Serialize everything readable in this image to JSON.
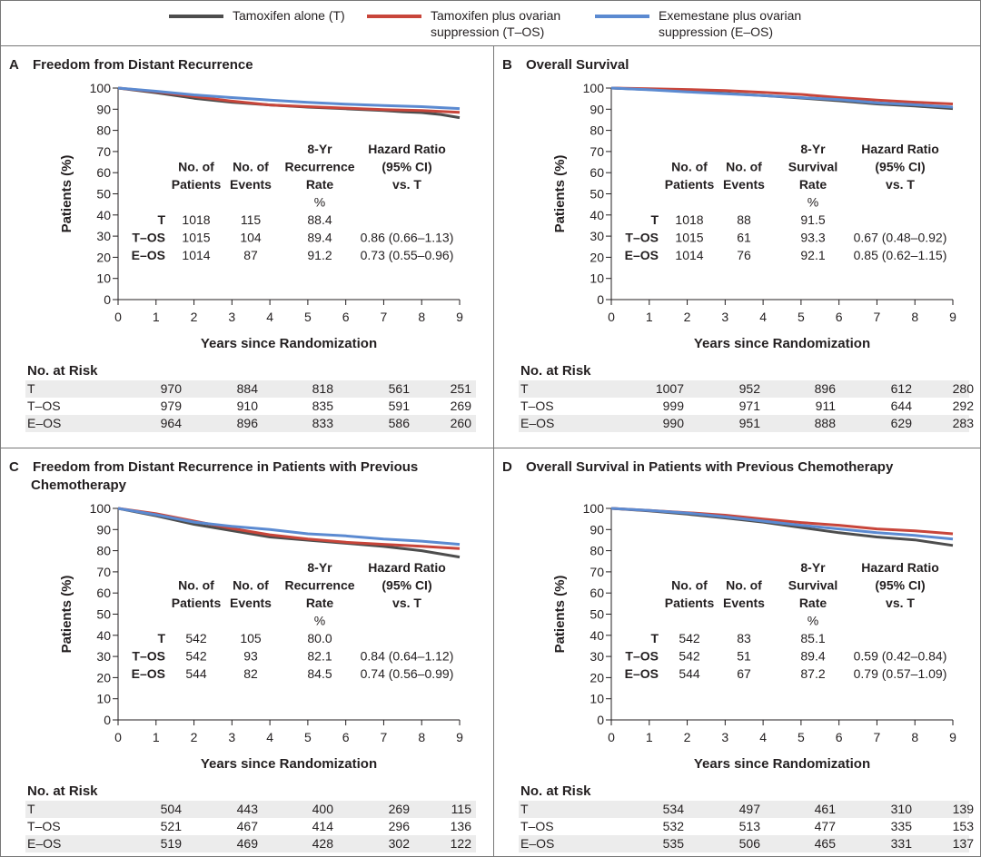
{
  "legend": [
    {
      "label": "Tamoxifen alone (T)",
      "color": "#4d4d4d"
    },
    {
      "label": "Tamoxifen plus ovarian\nsuppression (T–OS)",
      "color": "#c8453a"
    },
    {
      "label": "Exemestane plus ovarian\nsuppression (E–OS)",
      "color": "#5b8ad1"
    }
  ],
  "risk_title": "No. at Risk",
  "risk_labels": [
    "T",
    "T–OS",
    "E–OS"
  ],
  "chart_data": [
    {
      "type": "line",
      "letter": "A",
      "title": "Freedom from Distant Recurrence",
      "title_line2": "",
      "xlabel": "Years since Randomization",
      "ylabel": "Patients (%)",
      "xlim": [
        0,
        9
      ],
      "ylim": [
        0,
        100
      ],
      "xticks": [
        0,
        1,
        2,
        3,
        4,
        5,
        6,
        7,
        8,
        9
      ],
      "yticks": [
        0,
        10,
        20,
        30,
        40,
        50,
        60,
        70,
        80,
        90,
        100
      ],
      "series": [
        {
          "name": "T",
          "color": "#4d4d4d",
          "x": [
            0,
            1,
            2,
            3,
            4,
            5,
            6,
            7,
            7.5,
            8,
            8.5,
            9
          ],
          "y": [
            100,
            97.8,
            95.2,
            93.3,
            92.0,
            91.0,
            90.2,
            89.4,
            88.8,
            88.4,
            87.5,
            86.0
          ]
        },
        {
          "name": "T–OS",
          "color": "#c8453a",
          "x": [
            0,
            1,
            2,
            3,
            4,
            5,
            6,
            7,
            8,
            9
          ],
          "y": [
            100,
            98.3,
            96.0,
            93.8,
            92.0,
            91.2,
            90.5,
            89.8,
            89.4,
            88.5
          ]
        },
        {
          "name": "E–OS",
          "color": "#5b8ad1",
          "x": [
            0,
            1,
            2,
            3,
            4,
            5,
            6,
            7,
            8,
            9
          ],
          "y": [
            100,
            98.5,
            96.8,
            95.5,
            94.3,
            93.2,
            92.4,
            91.7,
            91.2,
            90.3
          ]
        }
      ],
      "table": {
        "headers": [
          [
            "No. of",
            "Patients"
          ],
          [
            "No. of",
            "Events"
          ],
          [
            "8-Yr",
            "Recurrence",
            "Rate",
            "%"
          ],
          [
            "Hazard Ratio",
            "(95% CI)",
            "vs. T"
          ]
        ],
        "rows": [
          {
            "group": "T",
            "patients": "1018",
            "events": "115",
            "rate": "88.4",
            "hr": ""
          },
          {
            "group": "T–OS",
            "patients": "1015",
            "events": "104",
            "rate": "89.4",
            "hr": "0.86 (0.66–1.13)"
          },
          {
            "group": "E–OS",
            "patients": "1014",
            "events": "87",
            "rate": "91.2",
            "hr": "0.73 (0.55–0.96)"
          }
        ]
      },
      "risk": [
        [
          "970",
          "884",
          "818",
          "561",
          "251"
        ],
        [
          "979",
          "910",
          "835",
          "591",
          "269"
        ],
        [
          "964",
          "896",
          "833",
          "586",
          "260"
        ]
      ]
    },
    {
      "type": "line",
      "letter": "B",
      "title": "Overall Survival",
      "title_line2": "",
      "xlabel": "Years since Randomization",
      "ylabel": "Patients (%)",
      "xlim": [
        0,
        9
      ],
      "ylim": [
        0,
        100
      ],
      "xticks": [
        0,
        1,
        2,
        3,
        4,
        5,
        6,
        7,
        8,
        9
      ],
      "yticks": [
        0,
        10,
        20,
        30,
        40,
        50,
        60,
        70,
        80,
        90,
        100
      ],
      "series": [
        {
          "name": "T",
          "color": "#4d4d4d",
          "x": [
            0,
            1,
            2,
            3,
            4,
            5,
            6,
            7,
            8,
            9
          ],
          "y": [
            100,
            99.3,
            98.5,
            97.5,
            96.5,
            95.3,
            94.0,
            92.5,
            91.5,
            90.3
          ]
        },
        {
          "name": "T–OS",
          "color": "#c8453a",
          "x": [
            0,
            1,
            2,
            3,
            4,
            5,
            6,
            7,
            8,
            9
          ],
          "y": [
            100,
            99.7,
            99.3,
            98.8,
            98.0,
            97.0,
            95.5,
            94.3,
            93.3,
            92.5
          ]
        },
        {
          "name": "E–OS",
          "color": "#5b8ad1",
          "x": [
            0,
            1,
            2,
            3,
            4,
            5,
            6,
            7,
            8,
            9
          ],
          "y": [
            100,
            99.2,
            98.2,
            97.3,
            96.5,
            95.5,
            94.5,
            93.0,
            92.1,
            91.0
          ]
        }
      ],
      "table": {
        "headers": [
          [
            "No. of",
            "Patients"
          ],
          [
            "No. of",
            "Events"
          ],
          [
            "8-Yr",
            "Survival",
            "Rate",
            "%"
          ],
          [
            "Hazard Ratio",
            "(95% CI)",
            "vs. T"
          ]
        ],
        "rows": [
          {
            "group": "T",
            "patients": "1018",
            "events": "88",
            "rate": "91.5",
            "hr": ""
          },
          {
            "group": "T–OS",
            "patients": "1015",
            "events": "61",
            "rate": "93.3",
            "hr": "0.67 (0.48–0.92)"
          },
          {
            "group": "E–OS",
            "patients": "1014",
            "events": "76",
            "rate": "92.1",
            "hr": "0.85 (0.62–1.15)"
          }
        ]
      },
      "risk": [
        [
          "1007",
          "952",
          "896",
          "612",
          "280"
        ],
        [
          "999",
          "971",
          "911",
          "644",
          "292"
        ],
        [
          "990",
          "951",
          "888",
          "629",
          "283"
        ]
      ]
    },
    {
      "type": "line",
      "letter": "C",
      "title": "Freedom from Distant Recurrence in Patients with Previous",
      "title_line2": "Chemotherapy",
      "xlabel": "Years since Randomization",
      "ylabel": "Patients (%)",
      "xlim": [
        0,
        9
      ],
      "ylim": [
        0,
        100
      ],
      "xticks": [
        0,
        1,
        2,
        3,
        4,
        5,
        6,
        7,
        8,
        9
      ],
      "yticks": [
        0,
        10,
        20,
        30,
        40,
        50,
        60,
        70,
        80,
        90,
        100
      ],
      "series": [
        {
          "name": "T",
          "color": "#4d4d4d",
          "x": [
            0,
            1,
            2,
            3,
            4,
            5,
            6,
            7,
            8,
            8.5,
            9
          ],
          "y": [
            100,
            96.5,
            92.5,
            89.5,
            86.5,
            85.0,
            83.5,
            82.0,
            80.0,
            78.5,
            77.0
          ]
        },
        {
          "name": "T–OS",
          "color": "#c8453a",
          "x": [
            0,
            1,
            2,
            3,
            4,
            5,
            6,
            7,
            8,
            9
          ],
          "y": [
            100,
            97.5,
            94.0,
            90.5,
            87.5,
            85.5,
            84.0,
            83.0,
            82.1,
            81.0
          ]
        },
        {
          "name": "E–OS",
          "color": "#5b8ad1",
          "x": [
            0,
            1,
            2,
            3,
            4,
            5,
            6,
            7,
            8,
            9
          ],
          "y": [
            100,
            97.0,
            93.5,
            91.5,
            90.0,
            88.0,
            87.0,
            85.5,
            84.5,
            83.0
          ]
        }
      ],
      "table": {
        "headers": [
          [
            "No. of",
            "Patients"
          ],
          [
            "No. of",
            "Events"
          ],
          [
            "8-Yr",
            "Recurrence",
            "Rate",
            "%"
          ],
          [
            "Hazard Ratio",
            "(95% CI)",
            "vs. T"
          ]
        ],
        "rows": [
          {
            "group": "T",
            "patients": "542",
            "events": "105",
            "rate": "80.0",
            "hr": ""
          },
          {
            "group": "T–OS",
            "patients": "542",
            "events": "93",
            "rate": "82.1",
            "hr": "0.84 (0.64–1.12)"
          },
          {
            "group": "E–OS",
            "patients": "544",
            "events": "82",
            "rate": "84.5",
            "hr": "0.74 (0.56–0.99)"
          }
        ]
      },
      "risk": [
        [
          "504",
          "443",
          "400",
          "269",
          "115"
        ],
        [
          "521",
          "467",
          "414",
          "296",
          "136"
        ],
        [
          "519",
          "469",
          "428",
          "302",
          "122"
        ]
      ]
    },
    {
      "type": "line",
      "letter": "D",
      "title": "Overall Survival in Patients with Previous Chemotherapy",
      "title_line2": "",
      "xlabel": "Years since Randomization",
      "ylabel": "Patients (%)",
      "xlim": [
        0,
        9
      ],
      "ylim": [
        0,
        100
      ],
      "xticks": [
        0,
        1,
        2,
        3,
        4,
        5,
        6,
        7,
        8,
        9
      ],
      "yticks": [
        0,
        10,
        20,
        30,
        40,
        50,
        60,
        70,
        80,
        90,
        100
      ],
      "series": [
        {
          "name": "T",
          "color": "#4d4d4d",
          "x": [
            0,
            1,
            2,
            3,
            4,
            5,
            6,
            7,
            8,
            9
          ],
          "y": [
            100,
            98.8,
            97.3,
            95.5,
            93.5,
            91.0,
            88.5,
            86.5,
            85.1,
            82.5
          ]
        },
        {
          "name": "T–OS",
          "color": "#c8453a",
          "x": [
            0,
            1,
            2,
            3,
            4,
            5,
            6,
            7,
            8,
            9
          ],
          "y": [
            100,
            99.0,
            98.0,
            96.8,
            95.0,
            93.3,
            92.0,
            90.3,
            89.4,
            88.0
          ]
        },
        {
          "name": "E–OS",
          "color": "#5b8ad1",
          "x": [
            0,
            1,
            2,
            3,
            4,
            5,
            6,
            7,
            8,
            9
          ],
          "y": [
            100,
            99.0,
            97.8,
            96.0,
            94.0,
            92.0,
            90.3,
            88.5,
            87.2,
            85.5
          ]
        }
      ],
      "table": {
        "headers": [
          [
            "No. of",
            "Patients"
          ],
          [
            "No. of",
            "Events"
          ],
          [
            "8-Yr",
            "Survival",
            "Rate",
            "%"
          ],
          [
            "Hazard Ratio",
            "(95% CI)",
            "vs. T"
          ]
        ],
        "rows": [
          {
            "group": "T",
            "patients": "542",
            "events": "83",
            "rate": "85.1",
            "hr": ""
          },
          {
            "group": "T–OS",
            "patients": "542",
            "events": "51",
            "rate": "89.4",
            "hr": "0.59 (0.42–0.84)"
          },
          {
            "group": "E–OS",
            "patients": "544",
            "events": "67",
            "rate": "87.2",
            "hr": "0.79 (0.57–1.09)"
          }
        ]
      },
      "risk": [
        [
          "534",
          "497",
          "461",
          "310",
          "139"
        ],
        [
          "532",
          "513",
          "477",
          "335",
          "153"
        ],
        [
          "535",
          "506",
          "465",
          "331",
          "137"
        ]
      ]
    }
  ]
}
